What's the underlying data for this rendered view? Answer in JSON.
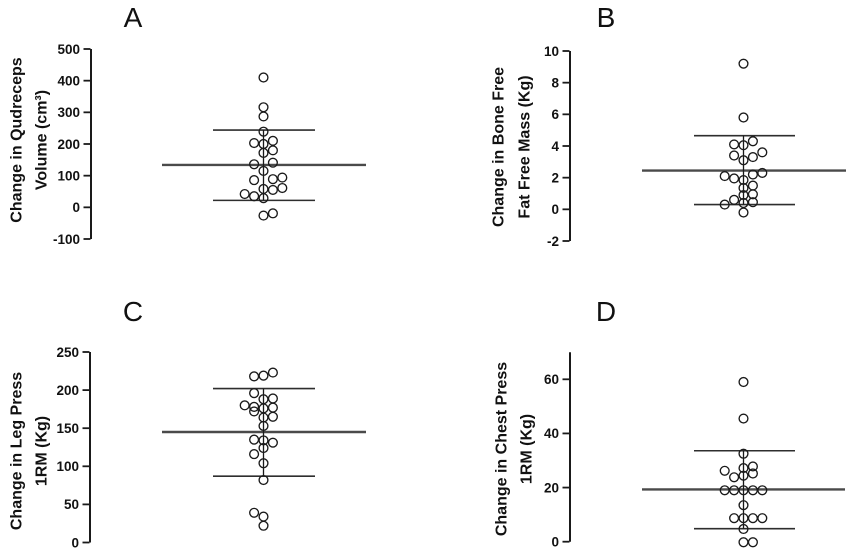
{
  "figure": {
    "background": "#ffffff",
    "marker_color": "#1a1a1a",
    "axis_color": "#1a1a1a",
    "mean_line_color": "#4a4a4a",
    "sd_line_color": "#2e2e2e"
  },
  "chart_data": [
    {
      "panel": "A",
      "type": "scatter",
      "title": "A",
      "ylabel_lines": [
        "Change in Qudreceps",
        "Volume (cm³)"
      ],
      "yticks": [
        500,
        400,
        300,
        200,
        100,
        0,
        -100
      ],
      "ylim": [
        -100,
        500
      ],
      "mean": 134,
      "sd_upper": 244,
      "sd_lower": 22,
      "points": [
        {
          "v": 410,
          "o": 0
        },
        {
          "v": 316,
          "o": 0
        },
        {
          "v": 287,
          "o": 0
        },
        {
          "v": 239,
          "o": 0
        },
        {
          "v": 210,
          "o": 1
        },
        {
          "v": 203,
          "o": -1
        },
        {
          "v": 200,
          "o": 0
        },
        {
          "v": 180,
          "o": 1
        },
        {
          "v": 172,
          "o": 0
        },
        {
          "v": 141,
          "o": 1
        },
        {
          "v": 136,
          "o": -1
        },
        {
          "v": 115,
          "o": 0
        },
        {
          "v": 94,
          "o": 2
        },
        {
          "v": 89,
          "o": 1
        },
        {
          "v": 86,
          "o": -1
        },
        {
          "v": 61,
          "o": 2
        },
        {
          "v": 58,
          "o": 0
        },
        {
          "v": 55,
          "o": 1
        },
        {
          "v": 42,
          "o": -2
        },
        {
          "v": 35,
          "o": -1
        },
        {
          "v": 29,
          "o": 0
        },
        {
          "v": -19,
          "o": 1
        },
        {
          "v": -26,
          "o": 0
        }
      ]
    },
    {
      "panel": "B",
      "type": "scatter",
      "title": "B",
      "ylabel_lines": [
        "Change in Bone Free",
        "Fat Free Mass (Kg)"
      ],
      "yticks": [
        10,
        8,
        6,
        4,
        2,
        0,
        -2
      ],
      "ylim": [
        -2,
        10
      ],
      "mean": 2.45,
      "sd_upper": 4.65,
      "sd_lower": 0.3,
      "points": [
        {
          "v": 9.2,
          "o": 0
        },
        {
          "v": 5.8,
          "o": 0
        },
        {
          "v": 4.3,
          "o": 1
        },
        {
          "v": 4.1,
          "o": -1
        },
        {
          "v": 4.05,
          "o": 0
        },
        {
          "v": 3.6,
          "o": 2
        },
        {
          "v": 3.4,
          "o": -1
        },
        {
          "v": 3.3,
          "o": 1
        },
        {
          "v": 3.1,
          "o": 0
        },
        {
          "v": 2.3,
          "o": 2
        },
        {
          "v": 2.2,
          "o": 1
        },
        {
          "v": 2.1,
          "o": -2
        },
        {
          "v": 1.95,
          "o": -1
        },
        {
          "v": 1.85,
          "o": 0
        },
        {
          "v": 1.5,
          "o": 1
        },
        {
          "v": 1.35,
          "o": 0
        },
        {
          "v": 0.95,
          "o": 1
        },
        {
          "v": 0.9,
          "o": 0
        },
        {
          "v": 0.6,
          "o": -1
        },
        {
          "v": 0.45,
          "o": 1
        },
        {
          "v": 0.4,
          "o": 0
        },
        {
          "v": 0.3,
          "o": -2
        },
        {
          "v": -0.2,
          "o": 0
        }
      ]
    },
    {
      "panel": "C",
      "type": "scatter",
      "title": "C",
      "ylabel_lines": [
        "Change in Leg Press",
        "1RM (Kg)"
      ],
      "yticks": [
        250,
        200,
        150,
        100,
        50,
        0
      ],
      "ylim": [
        0,
        250
      ],
      "mean": 145,
      "sd_upper": 202,
      "sd_lower": 87,
      "points": [
        {
          "v": 223,
          "o": 1
        },
        {
          "v": 219,
          "o": 0
        },
        {
          "v": 218,
          "o": -1
        },
        {
          "v": 196,
          "o": -1
        },
        {
          "v": 189,
          "o": 1
        },
        {
          "v": 188,
          "o": 0
        },
        {
          "v": 180,
          "o": -2
        },
        {
          "v": 178,
          "o": -1
        },
        {
          "v": 177,
          "o": 1
        },
        {
          "v": 176,
          "o": 0
        },
        {
          "v": 172,
          "o": -1
        },
        {
          "v": 165,
          "o": 1
        },
        {
          "v": 164,
          "o": 0
        },
        {
          "v": 153,
          "o": 0
        },
        {
          "v": 135,
          "o": -1
        },
        {
          "v": 134,
          "o": 0
        },
        {
          "v": 131,
          "o": 1
        },
        {
          "v": 124,
          "o": 0
        },
        {
          "v": 116,
          "o": -1
        },
        {
          "v": 104,
          "o": 0
        },
        {
          "v": 82,
          "o": 0
        },
        {
          "v": 39,
          "o": -1
        },
        {
          "v": 34,
          "o": 0
        },
        {
          "v": 22,
          "o": 0
        }
      ]
    },
    {
      "panel": "D",
      "type": "scatter",
      "title": "D",
      "ylabel_lines": [
        "Change in Chest Press",
        "1RM (Kg)"
      ],
      "yticks": [
        60,
        40,
        20,
        0
      ],
      "ylim": [
        0,
        60
      ],
      "axis_top_value": 70,
      "mean": 19.3,
      "sd_upper": 33.6,
      "sd_lower": 4.8,
      "points": [
        {
          "v": 59,
          "o": 0
        },
        {
          "v": 45.5,
          "o": 0
        },
        {
          "v": 32.5,
          "o": 0
        },
        {
          "v": 27.8,
          "o": 1
        },
        {
          "v": 27.2,
          "o": 0
        },
        {
          "v": 26.2,
          "o": -2
        },
        {
          "v": 25.2,
          "o": 1
        },
        {
          "v": 24.4,
          "o": 0
        },
        {
          "v": 23.8,
          "o": -1
        },
        {
          "v": 19,
          "o": -2
        },
        {
          "v": 19,
          "o": -1
        },
        {
          "v": 19,
          "o": 0
        },
        {
          "v": 19,
          "o": 1
        },
        {
          "v": 19,
          "o": 2
        },
        {
          "v": 13.5,
          "o": 0
        },
        {
          "v": 8.7,
          "o": -1
        },
        {
          "v": 8.7,
          "o": 0
        },
        {
          "v": 8.7,
          "o": 1
        },
        {
          "v": 8.7,
          "o": 2
        },
        {
          "v": 4.7,
          "o": 0
        },
        {
          "v": -0.2,
          "o": 0
        },
        {
          "v": -0.2,
          "o": 1
        }
      ]
    }
  ]
}
